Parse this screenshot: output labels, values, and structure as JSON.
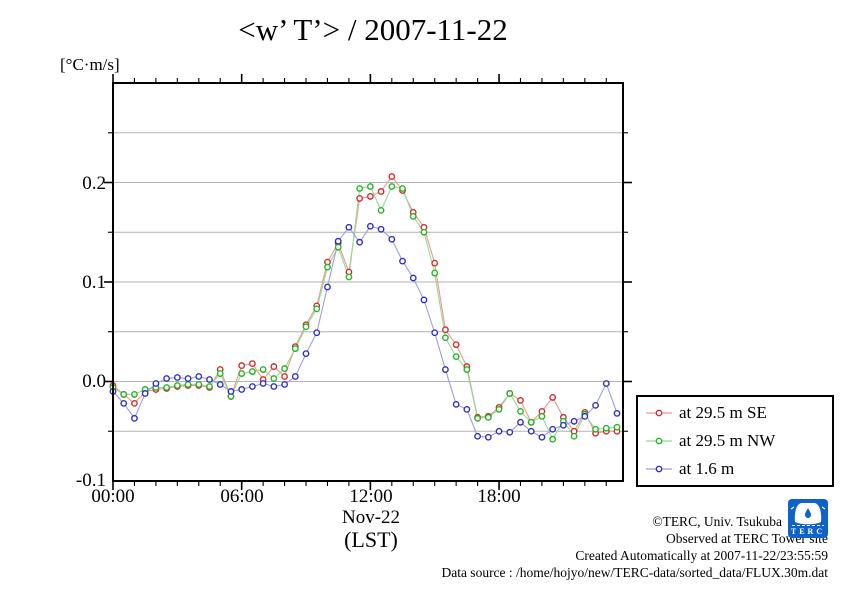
{
  "title": "<w’ T’> / 2007-11-22",
  "y_axis": {
    "unit_label": "[°C·m/s]",
    "tick_labels": [
      "0.2",
      "0.1",
      "0.0",
      "-0.1"
    ]
  },
  "x_axis": {
    "tick_labels": [
      "00:00",
      "06:00",
      "12:00",
      "18:00"
    ],
    "date_label": "Nov-22",
    "tz_label": "(LST)"
  },
  "legend": {
    "items": [
      {
        "label": "at 29.5 m SE",
        "marker_color": "#d42a2a",
        "line_color": "#f09494"
      },
      {
        "label": "at 29.5 m NW",
        "marker_color": "#22b422",
        "line_color": "#92dc92"
      },
      {
        "label": "at 1.6 m",
        "marker_color": "#2d2dc8",
        "line_color": "#9c9ce6"
      }
    ]
  },
  "credits": {
    "copyright": "©TERC, Univ. Tsukuba",
    "observed": "Observed at TERC Tower site",
    "created": "Created Automatically at 2007-11-22/23:55:59",
    "data_source": "Data source : /home/hojyo/new/TERC-data/sorted_data/FLUX.30m.dat"
  },
  "branding": {
    "logo_text": "TERC"
  },
  "chart_data": {
    "type": "line",
    "title": "<w’ T’> / 2007-11-22",
    "ylabel": "[°C·m/s]",
    "xlabel": "Nov-22 (LST)",
    "ylim": [
      -0.1,
      0.3
    ],
    "grid_step": 0.05,
    "grid_color": "#b2b2b2",
    "x_span_hours": [
      0,
      23.78
    ],
    "x_major_tick_hours": [
      0,
      6,
      12,
      18
    ],
    "x_minor_tick_every_hours": 1,
    "y_major_tick_values": [
      0.0,
      0.1,
      0.2
    ],
    "legend_position": "outside-right-bottom",
    "times": [
      "00:00",
      "00:30",
      "01:00",
      "01:30",
      "02:00",
      "02:30",
      "03:00",
      "03:30",
      "04:00",
      "04:30",
      "05:00",
      "05:30",
      "06:00",
      "06:30",
      "07:00",
      "07:30",
      "08:00",
      "08:30",
      "09:00",
      "09:30",
      "10:00",
      "10:30",
      "11:00",
      "11:30",
      "12:00",
      "12:30",
      "13:00",
      "13:30",
      "14:00",
      "14:30",
      "15:00",
      "15:30",
      "16:00",
      "16:30",
      "17:00",
      "17:30",
      "18:00",
      "18:30",
      "19:00",
      "19:30",
      "20:00",
      "20:30",
      "21:00",
      "21:30",
      "22:00",
      "22:30",
      "23:00",
      "23:30"
    ],
    "series": [
      {
        "name": "at 29.5 m SE",
        "marker_color": "#d42a2a",
        "line_color": "#f09494",
        "values": [
          -0.004,
          -0.013,
          -0.022,
          -0.01,
          -0.008,
          -0.007,
          -0.005,
          -0.004,
          -0.004,
          -0.006,
          0.012,
          -0.015,
          0.016,
          0.018,
          0.002,
          0.015,
          0.005,
          0.035,
          0.057,
          0.076,
          0.12,
          0.139,
          0.11,
          0.184,
          0.186,
          0.191,
          0.206,
          0.192,
          0.17,
          0.155,
          0.119,
          0.052,
          0.037,
          0.015,
          -0.036,
          -0.035,
          -0.026,
          -0.012,
          -0.019,
          -0.041,
          -0.03,
          -0.016,
          -0.036,
          -0.05,
          -0.031,
          -0.052,
          -0.05,
          -0.05
        ]
      },
      {
        "name": "at 29.5 m NW",
        "marker_color": "#22b422",
        "line_color": "#92dc92",
        "values": [
          -0.006,
          -0.013,
          -0.013,
          -0.008,
          -0.006,
          -0.006,
          -0.004,
          -0.003,
          -0.003,
          -0.005,
          0.008,
          -0.015,
          0.008,
          0.01,
          0.012,
          0.003,
          0.013,
          0.033,
          0.055,
          0.073,
          0.115,
          0.135,
          0.105,
          0.194,
          0.196,
          0.172,
          0.196,
          0.194,
          0.166,
          0.15,
          0.109,
          0.044,
          0.025,
          0.012,
          -0.037,
          -0.036,
          -0.028,
          -0.012,
          -0.03,
          -0.041,
          -0.035,
          -0.058,
          -0.04,
          -0.055,
          -0.033,
          -0.048,
          -0.047,
          -0.046
        ]
      },
      {
        "name": "at 1.6 m",
        "marker_color": "#2d2dc8",
        "line_color": "#9c9ce6",
        "values": [
          -0.01,
          -0.022,
          -0.037,
          -0.012,
          -0.002,
          0.003,
          0.004,
          0.003,
          0.005,
          0.002,
          -0.003,
          -0.01,
          -0.008,
          -0.005,
          -0.002,
          -0.005,
          -0.003,
          0.005,
          0.028,
          0.049,
          0.095,
          0.141,
          0.155,
          0.14,
          0.156,
          0.153,
          0.143,
          0.121,
          0.104,
          0.082,
          0.049,
          0.012,
          -0.023,
          -0.028,
          -0.055,
          -0.056,
          -0.05,
          -0.051,
          -0.041,
          -0.05,
          -0.056,
          -0.048,
          -0.044,
          -0.04,
          -0.035,
          -0.024,
          -0.002,
          -0.032
        ]
      }
    ]
  }
}
